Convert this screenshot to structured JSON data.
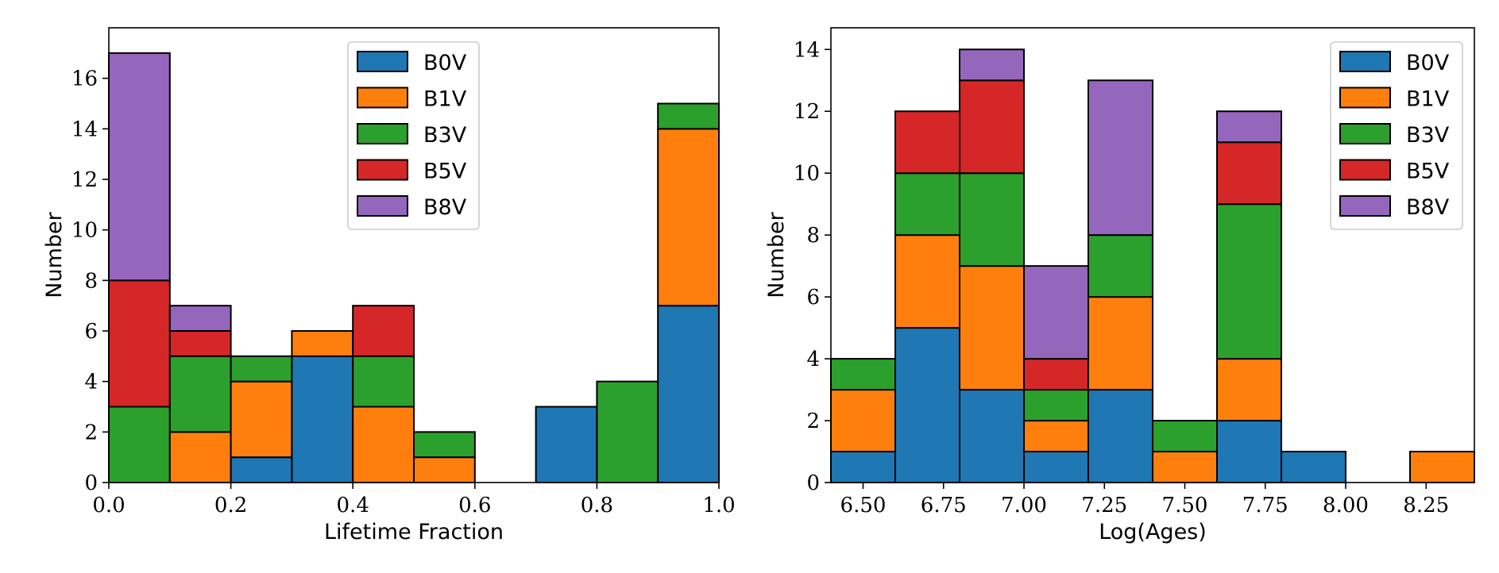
{
  "colors": {
    "B0V": "#1f77b4",
    "B1V": "#ff7f0e",
    "B3V": "#2ca02c",
    "B5V": "#d62728",
    "B8V": "#9467bd"
  },
  "chart_data": [
    {
      "type": "bar",
      "subtype": "stacked-histogram",
      "xlabel": "Lifetime Fraction",
      "ylabel": "Number",
      "xlim": [
        0.0,
        1.0
      ],
      "ylim": [
        0,
        18
      ],
      "xticks": [
        0.0,
        0.2,
        0.4,
        0.6,
        0.8,
        1.0
      ],
      "xtick_labels": [
        "0.0",
        "0.2",
        "0.4",
        "0.6",
        "0.8",
        "1.0"
      ],
      "yticks": [
        0,
        2,
        4,
        6,
        8,
        10,
        12,
        14,
        16
      ],
      "ytick_labels": [
        "0",
        "2",
        "4",
        "6",
        "8",
        "10",
        "12",
        "14",
        "16"
      ],
      "bin_edges": [
        0.0,
        0.1,
        0.2,
        0.3,
        0.4,
        0.5,
        0.6,
        0.7,
        0.8,
        0.9,
        1.0
      ],
      "legend_position": "top-center",
      "series": [
        {
          "name": "B0V",
          "values": [
            0,
            0,
            1,
            5,
            0,
            0,
            0,
            3,
            0,
            7
          ]
        },
        {
          "name": "B1V",
          "values": [
            0,
            2,
            3,
            1,
            3,
            1,
            0,
            0,
            0,
            7
          ]
        },
        {
          "name": "B3V",
          "values": [
            3,
            3,
            1,
            0,
            2,
            1,
            0,
            0,
            4,
            1
          ]
        },
        {
          "name": "B5V",
          "values": [
            5,
            1,
            0,
            0,
            2,
            0,
            0,
            0,
            0,
            0
          ]
        },
        {
          "name": "B8V",
          "values": [
            9,
            1,
            0,
            0,
            0,
            0,
            0,
            0,
            0,
            0
          ]
        }
      ]
    },
    {
      "type": "bar",
      "subtype": "stacked-histogram",
      "xlabel": "Log(Ages)",
      "ylabel": "Number",
      "xlim": [
        6.4,
        8.4
      ],
      "ylim": [
        0,
        14.7
      ],
      "xticks": [
        6.5,
        6.75,
        7.0,
        7.25,
        7.5,
        7.75,
        8.0,
        8.25
      ],
      "xtick_labels": [
        "6.50",
        "6.75",
        "7.00",
        "7.25",
        "7.50",
        "7.75",
        "8.00",
        "8.25"
      ],
      "yticks": [
        0,
        2,
        4,
        6,
        8,
        10,
        12,
        14
      ],
      "ytick_labels": [
        "0",
        "2",
        "4",
        "6",
        "8",
        "10",
        "12",
        "14"
      ],
      "bin_edges": [
        6.4,
        6.6,
        6.8,
        7.0,
        7.2,
        7.4,
        7.6,
        7.8,
        8.0,
        8.2,
        8.4
      ],
      "legend_position": "top-right",
      "series": [
        {
          "name": "B0V",
          "values": [
            1,
            5,
            3,
            1,
            3,
            0,
            2,
            1,
            0,
            0
          ]
        },
        {
          "name": "B1V",
          "values": [
            2,
            3,
            4,
            1,
            3,
            1,
            2,
            0,
            0,
            1
          ]
        },
        {
          "name": "B3V",
          "values": [
            1,
            2,
            3,
            1,
            2,
            1,
            5,
            0,
            0,
            0
          ]
        },
        {
          "name": "B5V",
          "values": [
            0,
            2,
            3,
            1,
            0,
            0,
            2,
            0,
            0,
            0
          ]
        },
        {
          "name": "B8V",
          "values": [
            0,
            0,
            1,
            3,
            5,
            0,
            1,
            0,
            0,
            0
          ]
        }
      ]
    }
  ]
}
